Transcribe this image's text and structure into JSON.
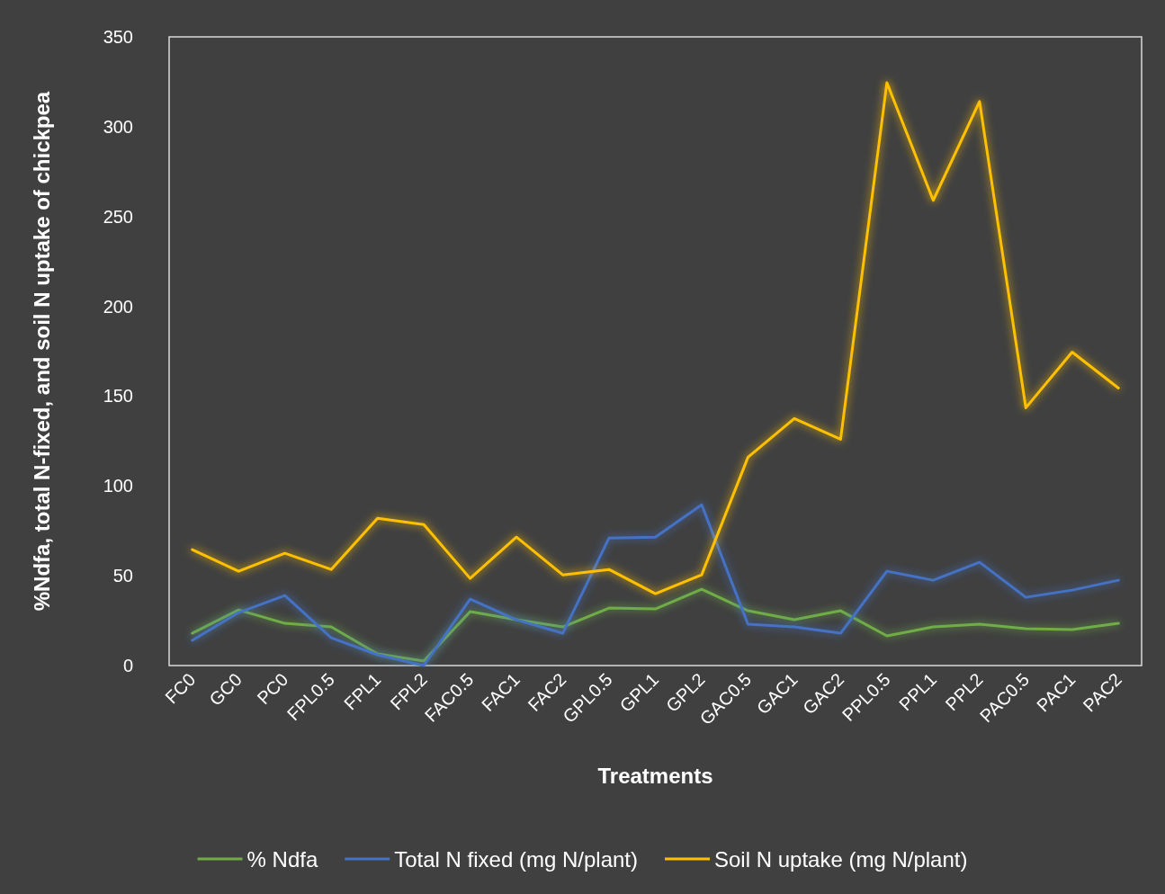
{
  "chart_data": {
    "type": "line",
    "xlabel": "Treatments",
    "ylabel": "%Ndfa, total N-fixed, and soil N uptake of chickpea",
    "categories": [
      "FC0",
      "GC0",
      "PC0",
      "FPL0.5",
      "FPL1",
      "FPL2",
      "FAC0.5",
      "FAC1",
      "FAC2",
      "GPL0.5",
      "GPL1",
      "GPL2",
      "GAC0.5",
      "GAC1",
      "GAC2",
      "PPL0.5",
      "PPL1",
      "PPL2",
      "PAC0.5",
      "PAC1",
      "PAC2"
    ],
    "series": [
      {
        "name": "% Ndfa",
        "color": "#70ad47",
        "values": [
          18,
          31,
          23.5,
          21.5,
          6.5,
          2.5,
          30,
          25.5,
          21.5,
          32,
          31.5,
          42.5,
          30.5,
          25.5,
          30.5,
          16.5,
          21.5,
          23,
          20.5,
          20,
          23.5
        ]
      },
      {
        "name": "Total N fixed (mg N/plant)",
        "color": "#4472c4",
        "values": [
          14,
          29.5,
          39,
          15.5,
          6,
          0,
          37,
          25.5,
          18,
          71,
          71.5,
          89.5,
          23,
          21.5,
          18,
          52.5,
          47.5,
          57.5,
          38,
          42,
          47.5
        ]
      },
      {
        "name": "Soil N uptake (mg N/plant)",
        "color": "#ffc000",
        "values": [
          64.5,
          52.5,
          62.5,
          53.5,
          82,
          78.5,
          48.5,
          71.5,
          50.5,
          53.5,
          40,
          50.5,
          116,
          137.5,
          126,
          324.5,
          259,
          314,
          143.5,
          174.5,
          154.5
        ]
      }
    ],
    "ylim": [
      0,
      350
    ],
    "yticks": [
      0,
      50,
      100,
      150,
      200,
      250,
      300,
      350
    ],
    "grid": false,
    "legend": "bottom",
    "marker": "none",
    "line_style": "solid"
  }
}
